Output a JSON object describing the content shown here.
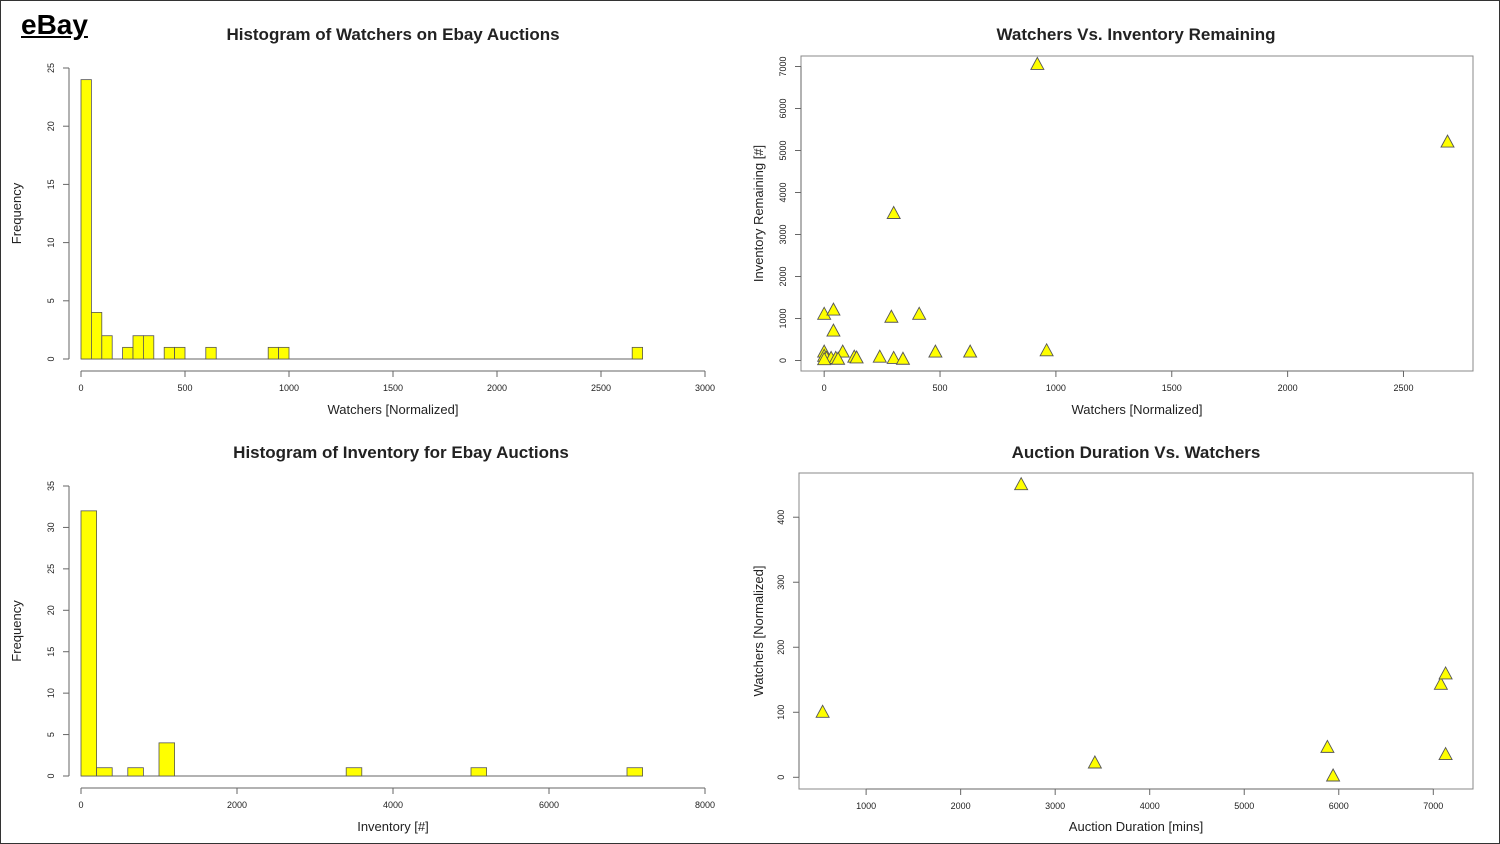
{
  "logo": "eBay",
  "chart_data": [
    {
      "type": "bar",
      "title": "Histogram of Watchers on Ebay Auctions",
      "xlabel": "Watchers [Normalized]",
      "ylabel": "Frequency",
      "xlim": [
        0,
        3000
      ],
      "ylim": [
        0,
        25
      ],
      "xticks": [
        0,
        500,
        1000,
        1500,
        2000,
        2500,
        3000
      ],
      "yticks": [
        0,
        5,
        10,
        15,
        20,
        25
      ],
      "bin_width": 50,
      "bins": [
        [
          0,
          24
        ],
        [
          50,
          4
        ],
        [
          100,
          2
        ],
        [
          150,
          0
        ],
        [
          200,
          1
        ],
        [
          250,
          2
        ],
        [
          300,
          2
        ],
        [
          350,
          0
        ],
        [
          400,
          1
        ],
        [
          450,
          1
        ],
        [
          600,
          1
        ],
        [
          900,
          1
        ],
        [
          950,
          1
        ],
        [
          2650,
          1
        ]
      ],
      "baseline_range": [
        0,
        2700
      ],
      "color": "#ffff00"
    },
    {
      "type": "scatter",
      "title": "Watchers Vs. Inventory Remaining",
      "xlabel": "Watchers [Normalized]",
      "ylabel": "Inventory Remaining [#]",
      "xlim": [
        -100,
        2800
      ],
      "ylim": [
        -250,
        7250
      ],
      "xticks": [
        0,
        500,
        1000,
        1500,
        2000,
        2500
      ],
      "yticks": [
        0,
        1000,
        2000,
        3000,
        4000,
        5000,
        6000,
        7000
      ],
      "points": [
        [
          920,
          7050
        ],
        [
          2690,
          5200
        ],
        [
          300,
          3500
        ],
        [
          0,
          1100
        ],
        [
          40,
          1200
        ],
        [
          40,
          700
        ],
        [
          290,
          1030
        ],
        [
          410,
          1100
        ],
        [
          480,
          200
        ],
        [
          630,
          200
        ],
        [
          960,
          230
        ],
        [
          0,
          200
        ],
        [
          0,
          100
        ],
        [
          10,
          50
        ],
        [
          30,
          50
        ],
        [
          50,
          50
        ],
        [
          80,
          200
        ],
        [
          130,
          80
        ],
        [
          140,
          60
        ],
        [
          240,
          80
        ],
        [
          300,
          50
        ],
        [
          340,
          30
        ],
        [
          0,
          20
        ],
        [
          60,
          30
        ]
      ],
      "marker": "triangle",
      "color": "#ffff00"
    },
    {
      "type": "bar",
      "title": "Histogram of Inventory for Ebay Auctions",
      "xlabel": "Inventory [#]",
      "ylabel": "Frequency",
      "xlim": [
        0,
        8000
      ],
      "ylim": [
        0,
        35
      ],
      "xticks": [
        0,
        2000,
        4000,
        6000,
        8000
      ],
      "yticks": [
        0,
        5,
        10,
        15,
        20,
        25,
        30,
        35
      ],
      "bin_width": 200,
      "bins": [
        [
          0,
          32
        ],
        [
          200,
          1
        ],
        [
          600,
          1
        ],
        [
          1000,
          4
        ],
        [
          3400,
          1
        ],
        [
          5000,
          1
        ],
        [
          7000,
          1
        ]
      ],
      "baseline_range": [
        0,
        7200
      ],
      "color": "#ffff00"
    },
    {
      "type": "scatter",
      "title": "Auction Duration Vs. Watchers",
      "xlabel": "Auction Duration [mins]",
      "ylabel": "Watchers [Normalized]",
      "xlim": [
        290,
        7420
      ],
      "ylim": [
        -18,
        468
      ],
      "xticks": [
        1000,
        2000,
        3000,
        4000,
        5000,
        6000,
        7000
      ],
      "yticks": [
        0,
        100,
        200,
        300,
        400
      ],
      "points": [
        [
          540,
          100
        ],
        [
          2640,
          450
        ],
        [
          3420,
          22
        ],
        [
          5880,
          46
        ],
        [
          5940,
          2
        ],
        [
          7080,
          143
        ],
        [
          7130,
          159
        ],
        [
          7130,
          35
        ]
      ],
      "marker": "triangle",
      "color": "#ffff00"
    }
  ]
}
